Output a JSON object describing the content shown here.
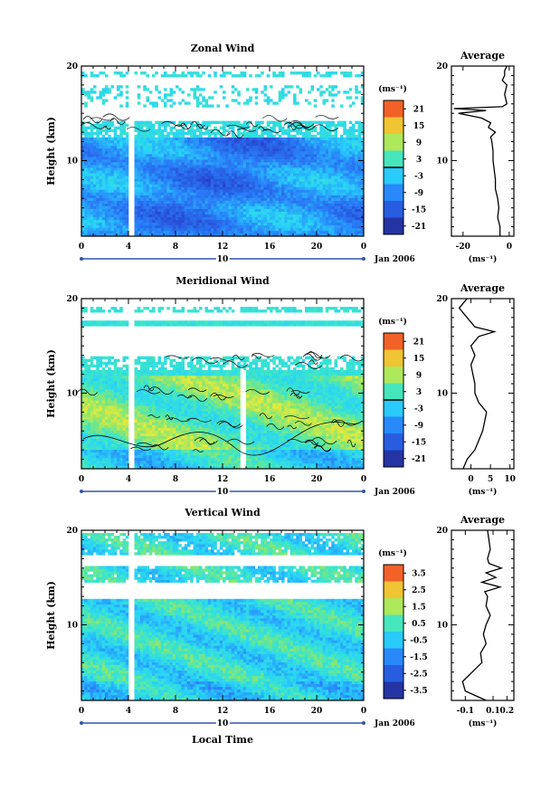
{
  "chart_data": [
    {
      "type": "heatmap",
      "title": "Zonal Wind",
      "xlabel": "",
      "ylabel": "Height (km)",
      "x_ticks": [
        "0",
        "4",
        "8",
        "12",
        "16",
        "20",
        "0"
      ],
      "y_ticks": [
        "10",
        "20"
      ],
      "xlim": [
        0,
        24
      ],
      "ylim": [
        2,
        20
      ],
      "date_row": {
        "day": "10",
        "month_label": "Jan 2006"
      },
      "colorbar": {
        "unit": "(ms⁻¹)",
        "ticks": [
          "21",
          "15",
          "9",
          "3",
          "-3",
          "-9",
          "-15",
          "-21"
        ],
        "range": [
          -24,
          24
        ],
        "contour_level": 0
      },
      "profile": {
        "title": "Average",
        "xlabel": "(ms⁻¹)",
        "x_ticks": [
          "-20",
          "0"
        ],
        "xlim": [
          -25,
          2
        ],
        "y_ticks": [
          "10",
          "20"
        ],
        "points": [
          [
            -4,
            2
          ],
          [
            -4,
            3
          ],
          [
            -5,
            4
          ],
          [
            -4.5,
            5
          ],
          [
            -5,
            6
          ],
          [
            -6,
            7
          ],
          [
            -6,
            8
          ],
          [
            -6.5,
            9
          ],
          [
            -7,
            10
          ],
          [
            -7,
            11
          ],
          [
            -7.5,
            12
          ],
          [
            -8,
            12.5
          ],
          [
            -6,
            13
          ],
          [
            -9,
            13.5
          ],
          [
            -8,
            14
          ],
          [
            -12,
            14.5
          ],
          [
            -22,
            15
          ],
          [
            -10,
            15.3
          ],
          [
            -24,
            15.5
          ],
          [
            -3,
            15.7
          ],
          [
            -1,
            16
          ],
          [
            -2,
            17
          ],
          [
            -1,
            18
          ],
          [
            -3,
            18.5
          ],
          [
            -2,
            19
          ],
          [
            -2,
            19.5
          ],
          [
            -1,
            20
          ]
        ]
      }
    },
    {
      "type": "heatmap",
      "title": "Meridional Wind",
      "xlabel": "",
      "ylabel": "Height (km)",
      "x_ticks": [
        "0",
        "4",
        "8",
        "12",
        "16",
        "20",
        "0"
      ],
      "y_ticks": [
        "10",
        "20"
      ],
      "xlim": [
        0,
        24
      ],
      "ylim": [
        2,
        20
      ],
      "date_row": {
        "day": "10",
        "month_label": "Jan 2006"
      },
      "colorbar": {
        "unit": "(ms⁻¹)",
        "ticks": [
          "21",
          "15",
          "9",
          "3",
          "-3",
          "-9",
          "-15",
          "-21"
        ],
        "range": [
          -24,
          24
        ],
        "contour_level": 0
      },
      "profile": {
        "title": "Average",
        "xlabel": "(ms⁻¹)",
        "x_ticks": [
          "0",
          "5",
          "10"
        ],
        "xlim": [
          -5,
          11
        ],
        "y_ticks": [
          "10",
          "20"
        ],
        "points": [
          [
            -2,
            2
          ],
          [
            -1,
            3
          ],
          [
            1,
            4
          ],
          [
            2,
            5
          ],
          [
            3,
            6
          ],
          [
            3.5,
            7
          ],
          [
            4,
            8
          ],
          [
            2,
            9
          ],
          [
            1,
            10
          ],
          [
            1,
            11
          ],
          [
            0.5,
            12
          ],
          [
            0,
            13
          ],
          [
            1,
            14
          ],
          [
            0,
            15
          ],
          [
            2,
            16
          ],
          [
            6,
            16.5
          ],
          [
            3,
            16.8
          ],
          [
            1,
            17
          ],
          [
            0,
            17.5
          ],
          [
            -1,
            18
          ],
          [
            -2,
            18.5
          ],
          [
            -3,
            19
          ],
          [
            -2,
            19.5
          ],
          [
            -1,
            20
          ]
        ]
      }
    },
    {
      "type": "heatmap",
      "title": "Vertical Wind",
      "xlabel": "Local Time",
      "ylabel": "Height (km)",
      "x_ticks": [
        "0",
        "4",
        "8",
        "12",
        "16",
        "20",
        "0"
      ],
      "y_ticks": [
        "10",
        "20"
      ],
      "xlim": [
        0,
        24
      ],
      "ylim": [
        2,
        20
      ],
      "date_row": {
        "day": "10",
        "month_label": "Jan 2006"
      },
      "colorbar": {
        "unit": "(ms⁻¹)",
        "ticks": [
          "3.5",
          "2.5",
          "1.5",
          "0.5",
          "-0.5",
          "-1.5",
          "-2.5",
          "-3.5"
        ],
        "range": [
          -4,
          4
        ]
      },
      "profile": {
        "title": "Average",
        "xlabel": "(ms⁻¹)",
        "x_ticks": [
          "-0.1",
          "0.1",
          "0.2"
        ],
        "xlim": [
          -0.2,
          0.25
        ],
        "y_ticks": [
          "10",
          "20"
        ],
        "points": [
          [
            0.05,
            2
          ],
          [
            -0.1,
            3
          ],
          [
            -0.12,
            4
          ],
          [
            -0.05,
            5
          ],
          [
            0.02,
            6
          ],
          [
            0.01,
            7
          ],
          [
            0.05,
            8
          ],
          [
            0.03,
            9
          ],
          [
            0.05,
            10
          ],
          [
            0.08,
            11
          ],
          [
            0.05,
            12
          ],
          [
            0.06,
            13
          ],
          [
            0.04,
            13.5
          ],
          [
            0.15,
            14
          ],
          [
            0.02,
            14.5
          ],
          [
            0.12,
            15
          ],
          [
            0.05,
            15.5
          ],
          [
            0.16,
            16
          ],
          [
            0.07,
            16.5
          ],
          [
            0.06,
            17
          ],
          [
            0.08,
            18
          ],
          [
            0.07,
            19
          ],
          [
            0.06,
            20
          ]
        ]
      }
    }
  ]
}
